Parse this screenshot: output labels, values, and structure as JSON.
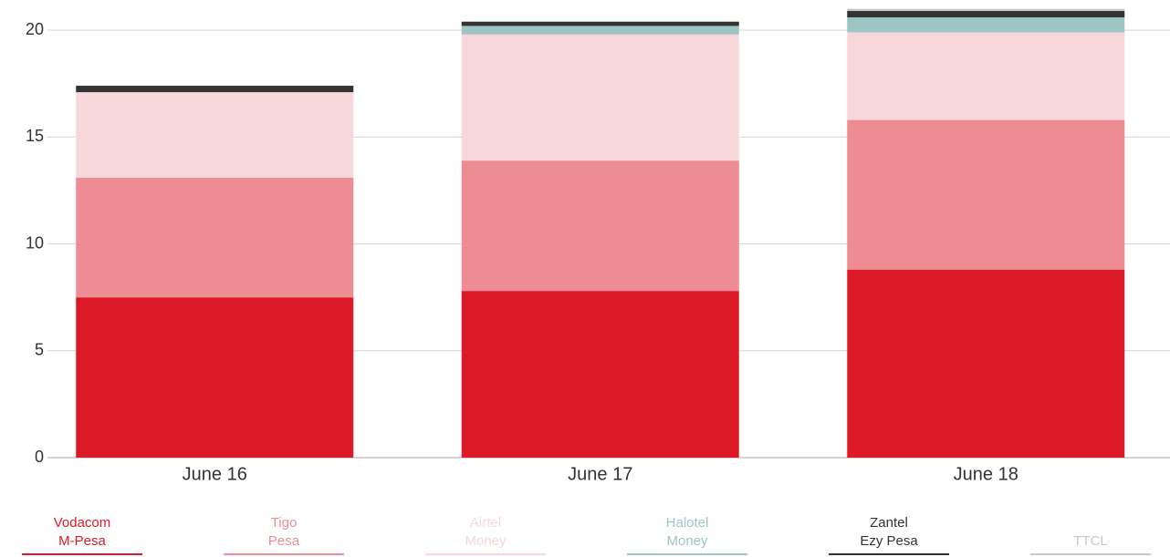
{
  "chart_data": {
    "type": "stacked_bar",
    "categories": [
      "June 16",
      "June 17",
      "June 18"
    ],
    "series": [
      {
        "name": "Vodacom M-Pesa",
        "color": "#dc1a27",
        "values": [
          7.5,
          7.8,
          8.8
        ]
      },
      {
        "name": "Tigo Pesa",
        "color": "#ee8c93",
        "values": [
          5.6,
          6.1,
          7.0
        ]
      },
      {
        "name": "Airtel Money",
        "color": "#f8d7db",
        "values": [
          4.0,
          5.9,
          4.1
        ]
      },
      {
        "name": "Halotel Money",
        "color": "#9cc5c3",
        "values": [
          0,
          0.4,
          0.7
        ]
      },
      {
        "name": "Zantel Ezy Pesa",
        "color": "#333333",
        "values": [
          0.3,
          0.2,
          0.3
        ]
      },
      {
        "name": "TTCL",
        "color": "#c8c8c8",
        "values": [
          0,
          0,
          0.1
        ]
      }
    ],
    "ylim": [
      0,
      21.2
    ],
    "yticks": [
      0,
      5,
      10,
      15,
      20
    ],
    "grid": true
  }
}
